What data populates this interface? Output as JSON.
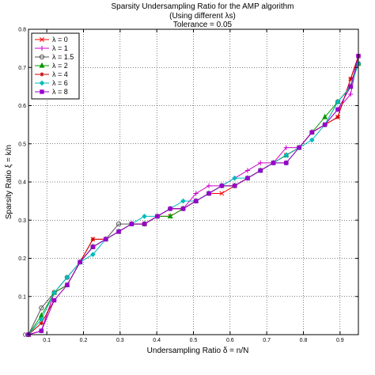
{
  "chart_data": {
    "type": "line",
    "title_lines": [
      "Sparsity Undersampling Ratio for the AMP algorithm",
      "(Using different λs)",
      "Tolerance = 0.05"
    ],
    "xlabel": "Undersampling Ratio  δ = n/N",
    "ylabel": "Sparsity Ratio  ξ = k/n",
    "xlim": [
      0.05,
      0.95
    ],
    "ylim": [
      0,
      0.8
    ],
    "xticks": [
      "0.1",
      "0.2",
      "0.3",
      "0.4",
      "0.5",
      "0.6",
      "0.7",
      "0.8",
      "0.9"
    ],
    "xtick_values": [
      0.1,
      0.2,
      0.3,
      0.4,
      0.5,
      0.6,
      0.7,
      0.8,
      0.9
    ],
    "yticks": [
      "0",
      "0.1",
      "0.2",
      "0.3",
      "0.4",
      "0.5",
      "0.6",
      "0.7",
      "0.8"
    ],
    "ytick_values": [
      0,
      0.1,
      0.2,
      0.3,
      0.4,
      0.5,
      0.6,
      0.7,
      0.8
    ],
    "grid": true,
    "legend_position": "top-left",
    "x": [
      0.05,
      0.0852,
      0.1203,
      0.1555,
      0.1906,
      0.2258,
      0.2609,
      0.2961,
      0.3313,
      0.3664,
      0.4016,
      0.4367,
      0.4719,
      0.507,
      0.5422,
      0.5773,
      0.6125,
      0.6477,
      0.6828,
      0.718,
      0.7531,
      0.7883,
      0.8234,
      0.8586,
      0.8938,
      0.9289,
      0.95
    ],
    "series": [
      {
        "name": "λ = 0",
        "color": "#ff0000",
        "marker": "x",
        "values": [
          0.0,
          0.01,
          0.11,
          0.13,
          0.19,
          0.25,
          0.25,
          0.27,
          0.29,
          0.29,
          0.31,
          0.31,
          0.33,
          0.35,
          0.37,
          0.37,
          0.39,
          0.41,
          0.43,
          0.45,
          0.47,
          0.49,
          0.53,
          0.55,
          0.57,
          0.67,
          0.73
        ]
      },
      {
        "name": "λ = 1",
        "color": "#cc00cc",
        "marker": "+",
        "values": [
          0.0,
          0.01,
          0.11,
          0.13,
          0.19,
          0.23,
          0.25,
          0.27,
          0.29,
          0.29,
          0.31,
          0.33,
          0.33,
          0.37,
          0.39,
          0.39,
          0.41,
          0.43,
          0.45,
          0.45,
          0.49,
          0.49,
          0.53,
          0.55,
          0.59,
          0.63,
          0.73
        ]
      },
      {
        "name": "λ = 1.5",
        "color": "#555555",
        "marker": "o",
        "values": [
          0.0,
          0.07,
          0.11,
          0.15,
          0.19,
          0.23,
          0.25,
          0.29,
          0.29,
          0.29,
          0.31,
          0.33,
          0.33,
          0.35,
          0.37,
          0.39,
          0.39,
          0.41,
          0.43,
          0.45,
          0.45,
          0.49,
          0.53,
          0.55,
          0.61,
          0.65,
          0.71
        ]
      },
      {
        "name": "λ = 2",
        "color": "#009900",
        "marker": "^",
        "values": [
          0.0,
          0.05,
          0.11,
          0.13,
          0.19,
          0.23,
          0.25,
          0.27,
          0.29,
          0.29,
          0.31,
          0.31,
          0.33,
          0.35,
          0.37,
          0.39,
          0.39,
          0.41,
          0.43,
          0.45,
          0.47,
          0.49,
          0.53,
          0.57,
          0.61,
          0.65,
          0.71
        ]
      },
      {
        "name": "λ = 4",
        "color": "#cc0000",
        "marker": "*",
        "values": [
          0.0,
          0.03,
          0.09,
          0.13,
          0.19,
          0.25,
          0.25,
          0.27,
          0.29,
          0.29,
          0.31,
          0.33,
          0.33,
          0.35,
          0.37,
          0.39,
          0.39,
          0.41,
          0.43,
          0.45,
          0.47,
          0.49,
          0.53,
          0.55,
          0.57,
          0.67,
          0.73
        ]
      },
      {
        "name": "λ = 6",
        "color": "#00bbbb",
        "marker": "d",
        "values": [
          0.0,
          0.04,
          0.11,
          0.15,
          0.19,
          0.21,
          0.25,
          0.27,
          0.29,
          0.31,
          0.31,
          0.33,
          0.35,
          0.35,
          0.37,
          0.39,
          0.41,
          0.41,
          0.43,
          0.45,
          0.47,
          0.49,
          0.51,
          0.55,
          0.61,
          0.65,
          0.71
        ]
      },
      {
        "name": "λ = 8",
        "color": "#9900cc",
        "marker": "s",
        "values": [
          0.0,
          0.01,
          0.09,
          0.13,
          0.19,
          0.23,
          0.25,
          0.27,
          0.29,
          0.29,
          0.31,
          0.33,
          0.33,
          0.35,
          0.37,
          0.39,
          0.39,
          0.41,
          0.43,
          0.45,
          0.45,
          0.49,
          0.53,
          0.55,
          0.59,
          0.65,
          0.73
        ]
      }
    ]
  }
}
